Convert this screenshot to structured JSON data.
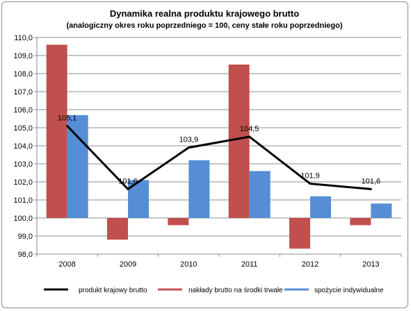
{
  "chart_data": {
    "type": "bar",
    "title": "Dynamika realna produktu krajowego brutto",
    "subtitle": "(analogiczny okres roku poprzedniego = 100, ceny stałe roku poprzedniego)",
    "categories": [
      "2008",
      "2009",
      "2010",
      "2011",
      "2012",
      "2013"
    ],
    "baseline": 100.0,
    "ylim": [
      98.0,
      110.0
    ],
    "ytick_step": 1.0,
    "ytick_labels": [
      "98,0",
      "99,0",
      "100,0",
      "101,0",
      "102,0",
      "103,0",
      "104,0",
      "105,0",
      "106,0",
      "107,0",
      "108,0",
      "109,0",
      "110,0"
    ],
    "grid": true,
    "legend_position": "bottom",
    "series": [
      {
        "name": "produkt krajowy brutto",
        "type": "line",
        "color": "#000000",
        "values": [
          105.1,
          101.6,
          103.9,
          104.5,
          101.9,
          101.6
        ],
        "labels": [
          "105,1",
          "101,6",
          "103,9",
          "104,5",
          "101,9",
          "101,6"
        ]
      },
      {
        "name": "nakłady brutto na środki trwałe",
        "type": "bar",
        "color": "#c0504d",
        "values": [
          109.6,
          98.8,
          99.6,
          108.5,
          98.3,
          99.6
        ]
      },
      {
        "name": "spożycie indywidualne",
        "type": "bar",
        "color": "#558ed5",
        "values": [
          105.7,
          102.1,
          103.2,
          102.6,
          101.2,
          100.8
        ]
      }
    ]
  }
}
